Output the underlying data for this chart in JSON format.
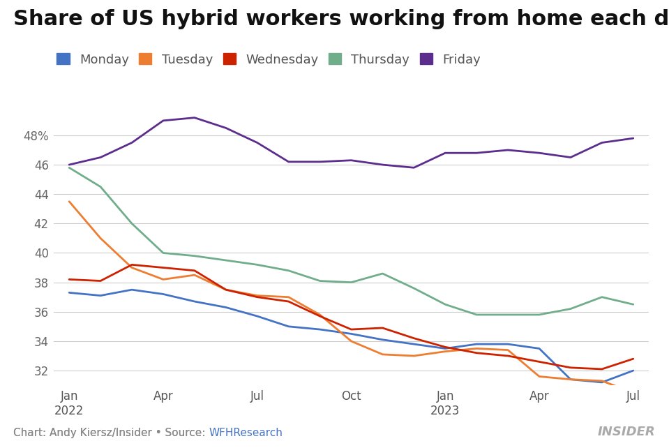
{
  "title": "Share of US hybrid workers working from home each day",
  "days": [
    "Monday",
    "Tuesday",
    "Wednesday",
    "Thursday",
    "Friday"
  ],
  "colors": {
    "Monday": "#4472c4",
    "Tuesday": "#ed7d31",
    "Wednesday": "#cc2200",
    "Thursday": "#70ad8a",
    "Friday": "#5c2d8c"
  },
  "x_labels": [
    "Jan\n2022",
    "Apr",
    "Jul",
    "Oct",
    "Jan\n2023",
    "Apr",
    "Jul"
  ],
  "x_positions": [
    0,
    3,
    6,
    9,
    12,
    15,
    18
  ],
  "ylim": [
    31.0,
    50.5
  ],
  "yticks": [
    32,
    34,
    36,
    38,
    40,
    42,
    44,
    46,
    48
  ],
  "data": {
    "Monday": [
      37.3,
      37.1,
      37.5,
      37.2,
      36.7,
      36.3,
      35.7,
      35.0,
      34.8,
      34.5,
      34.1,
      33.8,
      33.5,
      33.8,
      33.8,
      33.5,
      31.4,
      31.2,
      32.0
    ],
    "Tuesday": [
      43.5,
      41.0,
      39.0,
      38.2,
      38.5,
      37.5,
      37.1,
      37.0,
      35.8,
      34.0,
      33.1,
      33.0,
      33.3,
      33.5,
      33.4,
      31.6,
      31.4,
      31.3,
      30.5
    ],
    "Wednesday": [
      38.2,
      38.1,
      39.2,
      39.0,
      38.8,
      37.5,
      37.0,
      36.7,
      35.7,
      34.8,
      34.9,
      34.2,
      33.6,
      33.2,
      33.0,
      32.6,
      32.2,
      32.1,
      32.8
    ],
    "Thursday": [
      45.8,
      44.5,
      42.0,
      40.0,
      39.8,
      39.5,
      39.2,
      38.8,
      38.1,
      38.0,
      38.6,
      37.6,
      36.5,
      35.8,
      35.8,
      35.8,
      36.2,
      37.0,
      36.5
    ],
    "Friday": [
      46.0,
      46.5,
      47.5,
      49.0,
      49.2,
      48.5,
      47.5,
      46.2,
      46.2,
      46.3,
      46.0,
      45.8,
      46.8,
      46.8,
      47.0,
      46.8,
      46.5,
      47.5,
      47.8
    ]
  },
  "chart_credit": "Chart: Andy Kiersz/Insider • Source: ",
  "source_link": "WFHResearch",
  "source_url_color": "#4472c4",
  "insider_text": "INSIDER",
  "background_color": "#ffffff",
  "title_fontsize": 22,
  "legend_fontsize": 13,
  "axis_label_fontsize": 12,
  "credit_fontsize": 11
}
